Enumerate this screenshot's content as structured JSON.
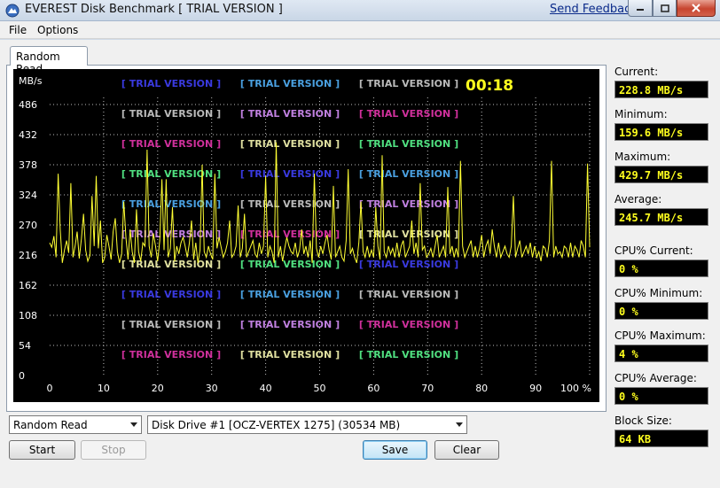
{
  "window": {
    "title": "EVEREST Disk Benchmark  [ TRIAL VERSION ]",
    "feedback_link": "Send Feedback"
  },
  "menu": {
    "file": "File",
    "options": "Options"
  },
  "tab": {
    "label": "Random Read"
  },
  "graph": {
    "unit_label": "MB/s",
    "timer": "00:18",
    "watermark": "[ TRIAL VERSION ]",
    "watermark_colors": [
      "#3a3ae0",
      "#d0309c",
      "#4aa0e0",
      "#e0e0a0",
      "#bababa",
      "#50e080",
      "#c080e0"
    ],
    "y_ticks": [
      "0",
      "54",
      "108",
      "162",
      "216",
      "270",
      "324",
      "378",
      "432",
      "486"
    ],
    "x_ticks": [
      "0",
      "10",
      "20",
      "30",
      "40",
      "50",
      "60",
      "70",
      "80",
      "90",
      "100 %"
    ],
    "line_color": "#ffff33"
  },
  "chart_data": {
    "type": "line",
    "ylabel": "MB/s",
    "ylim": [
      0,
      540
    ],
    "xlim": [
      0,
      100
    ],
    "grid": true,
    "series": [
      {
        "values": [
          238,
          230,
          250,
          212,
          362,
          262,
          202,
          225,
          242,
          220,
          345,
          212,
          232,
          258,
          210,
          245,
          290,
          225,
          205,
          215,
          322,
          232,
          358,
          228,
          278,
          202,
          212,
          252,
          232,
          208,
          258,
          282,
          222,
          202,
          218,
          312,
          248,
          208,
          262,
          222,
          202,
          298,
          222,
          205,
          238,
          232,
          405,
          232,
          212,
          255,
          232,
          205,
          242,
          352,
          225,
          352,
          212,
          228,
          302,
          205,
          232,
          218,
          238,
          248,
          232,
          212,
          238,
          278,
          208,
          238,
          202,
          225,
          378,
          222,
          212,
          232,
          218,
          208,
          362,
          228,
          248,
          230,
          212,
          222,
          238,
          278,
          212,
          218,
          232,
          305,
          212,
          228,
          290,
          212,
          222,
          232,
          242,
          218,
          212,
          238,
          218,
          232,
          358,
          212,
          232,
          222,
          202,
          418,
          212,
          232,
          205,
          228,
          248,
          232,
          222,
          218,
          238,
          212,
          225,
          262,
          218,
          232,
          212,
          242,
          202,
          362,
          228,
          212,
          232,
          218,
          238,
          252,
          225,
          208,
          340,
          212,
          222,
          232,
          212,
          205,
          242,
          370,
          218,
          228,
          212,
          202,
          238,
          312,
          222,
          212,
          232,
          212,
          225,
          212,
          302,
          232,
          208,
          395,
          222,
          212,
          232,
          218,
          228,
          212,
          238,
          212,
          232,
          242,
          212,
          222,
          232,
          278,
          218,
          238,
          212,
          345,
          225,
          232,
          212,
          218,
          228,
          212,
          232,
          252,
          212,
          222,
          232,
          212,
          338,
          218,
          232,
          212,
          228,
          212,
          385,
          232,
          212,
          222,
          232,
          242,
          212,
          232,
          212,
          228,
          252,
          212,
          232,
          242,
          218,
          262,
          232,
          212,
          238,
          212,
          222,
          232,
          218,
          212,
          232,
          322,
          212,
          228,
          242,
          212,
          222,
          232,
          218,
          238,
          212,
          232,
          212,
          222,
          205,
          232,
          228,
          212,
          242,
          385,
          212,
          232,
          218,
          222,
          212,
          232,
          228,
          212,
          238,
          212,
          232,
          225,
          212,
          242,
          232,
          212,
          380,
          230
        ]
      }
    ]
  },
  "stats": {
    "current_label": "Current:",
    "current_value": "228.8 MB/s",
    "minimum_label": "Minimum:",
    "minimum_value": "159.6 MB/s",
    "maximum_label": "Maximum:",
    "maximum_value": "429.7 MB/s",
    "average_label": "Average:",
    "average_value": "245.7 MB/s",
    "cpu_current_label": "CPU% Current:",
    "cpu_current_value": "0 %",
    "cpu_minimum_label": "CPU% Minimum:",
    "cpu_minimum_value": "0 %",
    "cpu_maximum_label": "CPU% Maximum:",
    "cpu_maximum_value": "4 %",
    "cpu_average_label": "CPU% Average:",
    "cpu_average_value": "0 %",
    "block_size_label": "Block Size:",
    "block_size_value": "64 KB"
  },
  "controls": {
    "test_select": "Random Read",
    "drive_select": "Disk Drive #1  [OCZ-VERTEX 1275]  (30534 MB)",
    "start": "Start",
    "stop": "Stop",
    "save": "Save",
    "clear": "Clear"
  }
}
